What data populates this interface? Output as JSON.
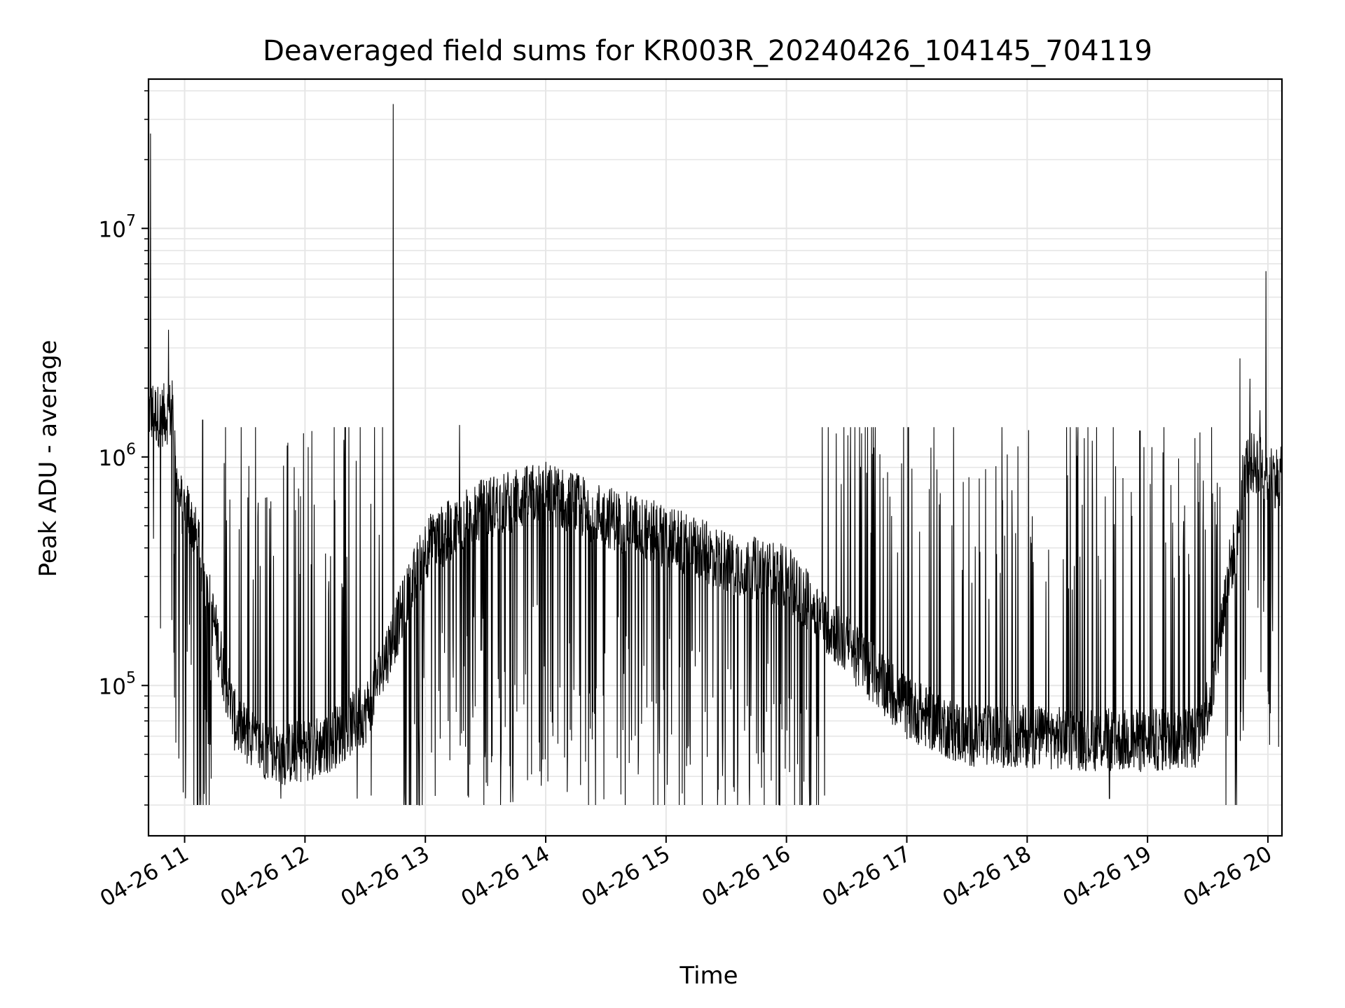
{
  "chart_data": {
    "type": "line",
    "title": "Deaveraged field sums for KR003R_20240426_104145_704119",
    "xlabel": "Time",
    "ylabel": "Peak ADU - average",
    "yscale": "log",
    "ylim": [
      22000,
      45000000
    ],
    "xlim": [
      "04-26 10:42",
      "04-26 20:07"
    ],
    "grid": true,
    "line_color": "#000000",
    "grid_color": "#e6e6e6",
    "x_ticks": [
      "04-26 11",
      "04-26 12",
      "04-26 13",
      "04-26 14",
      "04-26 15",
      "04-26 16",
      "04-26 17",
      "04-26 18",
      "04-26 19",
      "04-26 20"
    ],
    "y_ticks": [
      {
        "value": 100000,
        "base": "10",
        "exp": "5"
      },
      {
        "value": 1000000,
        "base": "10",
        "exp": "6"
      },
      {
        "value": 10000000,
        "base": "10",
        "exp": "7"
      }
    ],
    "series": [
      {
        "baseline": [
          [
            "04-26 10:42",
            1600000
          ],
          [
            "04-26 10:48",
            1500000
          ],
          [
            "04-26 10:54",
            1600000
          ],
          [
            "04-26 10:57",
            650000
          ],
          [
            "04-26 11:03",
            550000
          ],
          [
            "04-26 11:10",
            300000
          ],
          [
            "04-26 11:15",
            180000
          ],
          [
            "04-26 11:20",
            110000
          ],
          [
            "04-26 11:25",
            70000
          ],
          [
            "04-26 11:35",
            55000
          ],
          [
            "04-26 11:50",
            50000
          ],
          [
            "04-26 12:10",
            55000
          ],
          [
            "04-26 12:30",
            75000
          ],
          [
            "04-26 13:00",
            400000
          ],
          [
            "04-26 13:30",
            600000
          ],
          [
            "04-26 14:00",
            700000
          ],
          [
            "04-26 14:30",
            550000
          ],
          [
            "04-26 15:00",
            450000
          ],
          [
            "04-26 15:30",
            350000
          ],
          [
            "04-26 16:00",
            300000
          ],
          [
            "04-26 16:30",
            150000
          ],
          [
            "04-26 17:00",
            80000
          ],
          [
            "04-26 17:30",
            60000
          ],
          [
            "04-26 18:00",
            60000
          ],
          [
            "04-26 18:30",
            58000
          ],
          [
            "04-26 19:00",
            57000
          ],
          [
            "04-26 19:25",
            60000
          ],
          [
            "04-26 19:33",
            100000
          ],
          [
            "04-26 19:40",
            300000
          ],
          [
            "04-26 19:45",
            450000
          ],
          [
            "04-26 19:48",
            900000
          ],
          [
            "04-26 19:55",
            950000
          ],
          [
            "04-26 20:00",
            850000
          ],
          [
            "04-26 20:07",
            800000
          ]
        ],
        "spikes": [
          [
            "04-26 10:43",
            26000000
          ],
          [
            "04-26 12:44",
            35000000
          ],
          [
            "04-26 19:59",
            6500000
          ],
          [
            "04-26 10:52",
            3600000
          ],
          [
            "04-26 19:46",
            2700000
          ],
          [
            "04-26 19:51",
            2200000
          ],
          [
            "04-26 11:09",
            1450000
          ],
          [
            "04-26 13:17",
            1380000
          ],
          [
            "04-26 19:56",
            1600000
          ],
          [
            "04-26 11:48",
            32000
          ],
          [
            "04-26 12:26",
            32000
          ],
          [
            "04-26 12:33",
            33000
          ],
          [
            "04-26 15:26",
            35000
          ],
          [
            "04-26 16:19",
            33000
          ],
          [
            "04-26 18:41",
            32000
          ],
          [
            "04-26 11:13",
            105000
          ]
        ]
      }
    ]
  }
}
